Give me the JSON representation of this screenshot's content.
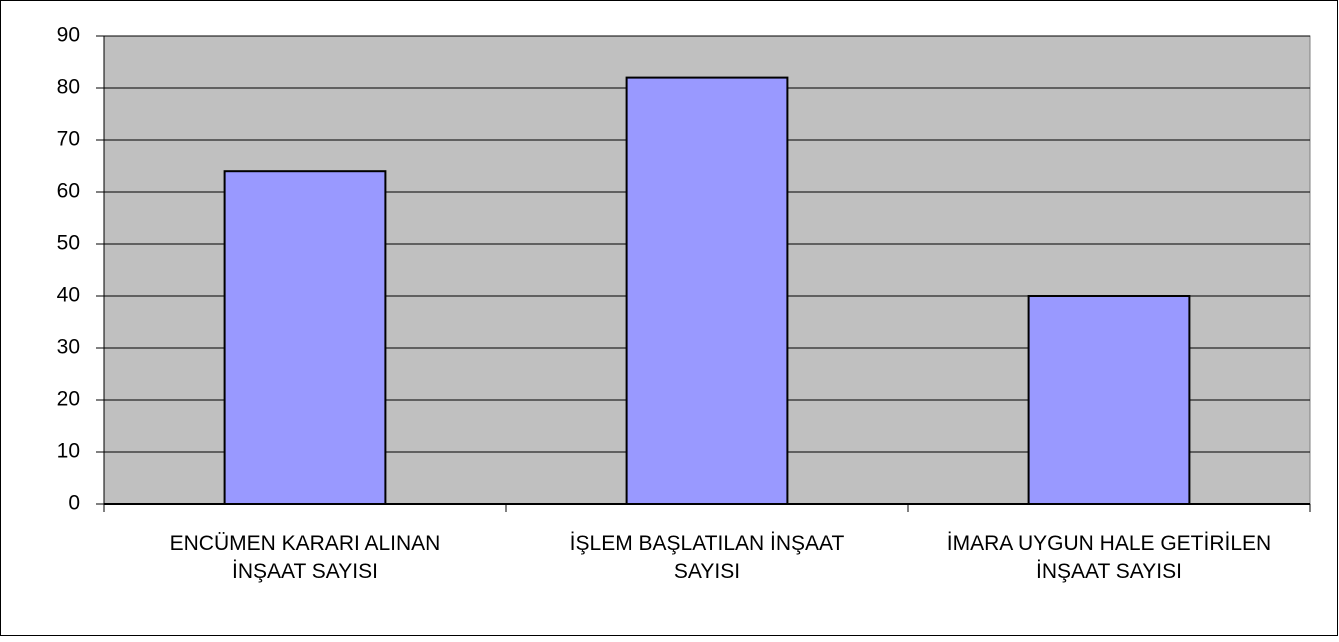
{
  "chart_data": {
    "type": "bar",
    "categories": [
      "ENCÜMEN KARARI ALINAN İNŞAAT SAYISI",
      "İŞLEM BAŞLATILAN İNŞAAT SAYISI",
      "İMARA UYGUN HALE GETİRİLEN İNŞAAT SAYISI"
    ],
    "values": [
      64,
      82,
      40
    ],
    "color": "#9999ff",
    "plot_background": "#c0c0c0",
    "ylim": [
      0,
      90
    ],
    "yticks": [
      0,
      10,
      20,
      30,
      40,
      50,
      60,
      70,
      80,
      90
    ],
    "grid": true
  }
}
